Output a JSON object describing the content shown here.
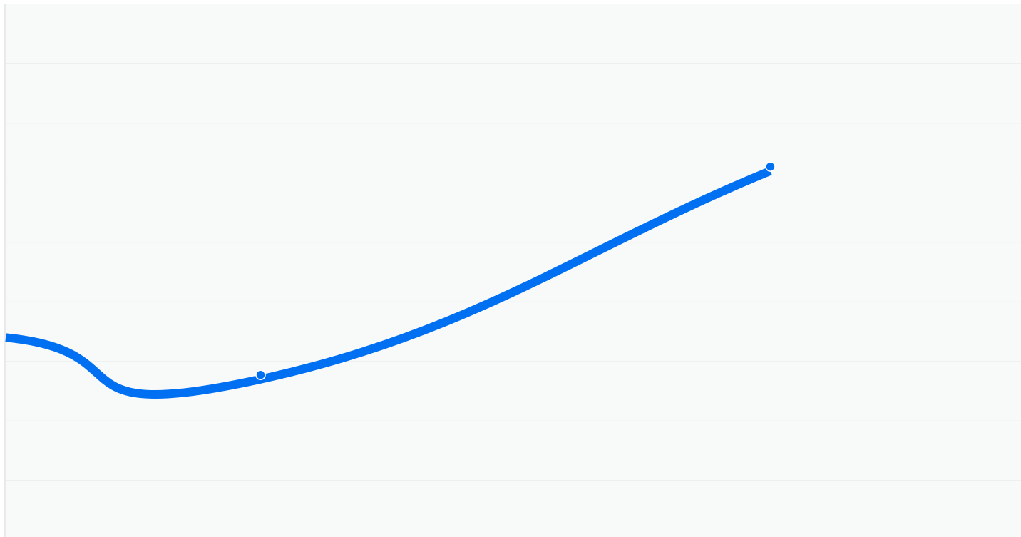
{
  "chart_data": {
    "type": "line",
    "title": "",
    "xlabel": "",
    "ylabel": "",
    "grid": true,
    "legend": "none",
    "xlim": [
      0,
      4
    ],
    "ylim": [
      0,
      9
    ],
    "series": [
      {
        "color": "#0070f3",
        "curve": "smooth",
        "points": [
          {
            "x": 0.0,
            "y": 3.4,
            "marker": "none"
          },
          {
            "x": 1.0,
            "y": 2.7,
            "marker": "hollow"
          },
          {
            "x": 3.0,
            "y": 6.2,
            "marker": "filled"
          }
        ]
      }
    ]
  },
  "colors": {
    "background": "#f8f9f9",
    "grid": "#eeeeee",
    "left_rule": "#eaeaea",
    "line": "#0070f3",
    "marker_stroke": "#ffffff"
  }
}
